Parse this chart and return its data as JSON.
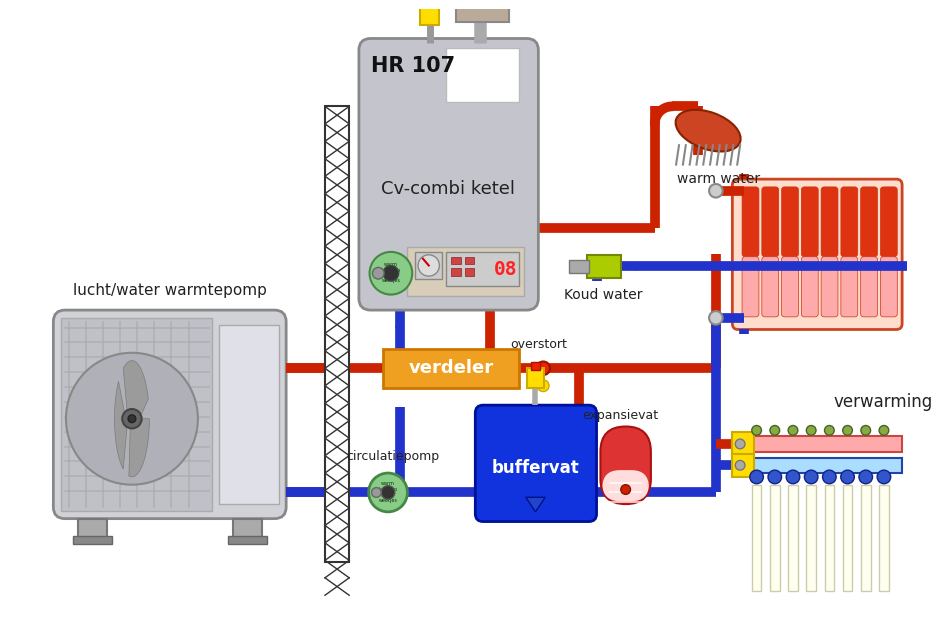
{
  "bg_color": "#ffffff",
  "pipe_red": "#cc2200",
  "pipe_blue": "#2233cc",
  "verdeler_color": "#f0a020",
  "buffervat_color": "#1133dd",
  "pump_color": "#88cc88",
  "wall_hatch_color": "#333333",
  "boiler_fc": "#c4c4cc",
  "boiler_ec": "#888888",
  "label_boiler": "Cv-combi ketel",
  "label_hr": "HR 107",
  "label_verdeler": "verdeler",
  "label_buffervat": "buffervat",
  "label_expansievat": "expansievat",
  "label_warmtepomp": "lucht/water warmtepomp",
  "label_verwarming": "verwarming",
  "label_overstort": "overstort",
  "label_koudwater": "Koud water",
  "label_warmwater": "warm water",
  "label_circulatiepomp": "circulatiepomp",
  "hp_fc": "#d0d2d8",
  "hp_ec": "#888888",
  "fan_fc": "#aaaaaa",
  "blade_fc": "#999999",
  "radiator_top": "#ee4422",
  "radiator_bot": "#ffdddd",
  "manifold_red_fc": "#ffaaaa",
  "manifold_blue_fc": "#aaddff",
  "tube_fc": "#fffff0",
  "expansievat_fc": "#dd3333",
  "yellow": "#ffdd00",
  "yellow_green": "#aacc00"
}
